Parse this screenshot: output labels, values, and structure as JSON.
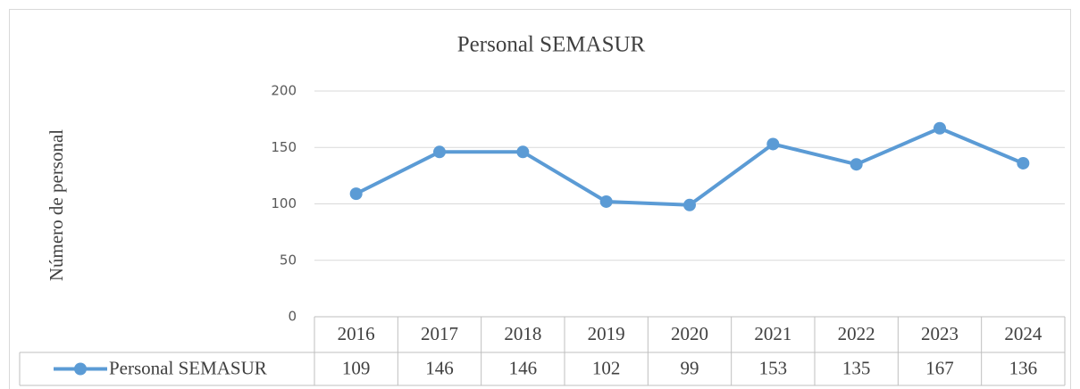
{
  "chart_data": {
    "type": "line",
    "title": "Personal SEMASUR",
    "y_label": "Número de personal",
    "categories": [
      "2016",
      "2017",
      "2018",
      "2019",
      "2020",
      "2021",
      "2022",
      "2023",
      "2024"
    ],
    "series": [
      {
        "name": "Personal SEMASUR",
        "color": "#5b9bd5",
        "values": [
          109,
          146,
          146,
          102,
          99,
          153,
          135,
          167,
          136
        ]
      }
    ],
    "ylim": [
      0,
      200
    ],
    "yticks": [
      0,
      50,
      100,
      150,
      200
    ],
    "grid": true,
    "data_table": true
  }
}
